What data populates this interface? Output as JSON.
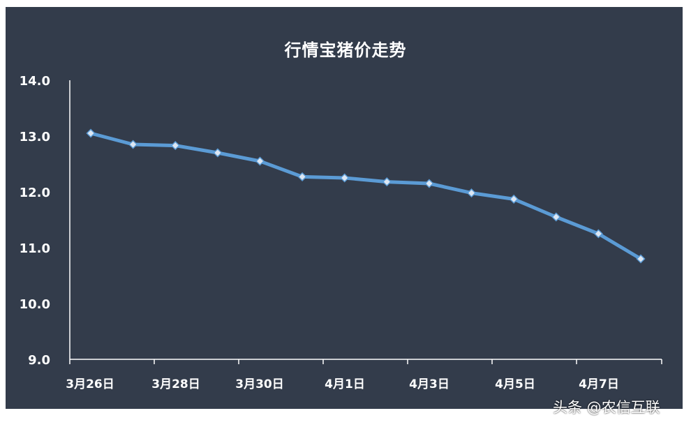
{
  "chart_data": {
    "type": "line",
    "title": "行情宝猪价走势",
    "xlabel": "",
    "ylabel": "",
    "ylim": [
      9.0,
      14.0
    ],
    "yticks": [
      "9.0",
      "10.0",
      "11.0",
      "12.0",
      "13.0",
      "14.0"
    ],
    "xtick_labels": [
      "3月26日",
      "3月28日",
      "3月30日",
      "4月1日",
      "4月3日",
      "4月5日",
      "4月7日"
    ],
    "grid": false,
    "legend": "none",
    "series": [
      {
        "values": [
          13.05,
          12.85,
          12.83,
          12.7,
          12.55,
          12.27,
          12.25,
          12.18,
          12.15,
          11.98,
          11.87,
          11.55,
          11.25,
          10.8
        ]
      }
    ],
    "colors": {
      "background": "#333c4b",
      "line": "#5b9bd5",
      "marker_fill": "#dde7f3",
      "text": "#ffffff"
    }
  },
  "watermark": "头条 @农信互联"
}
